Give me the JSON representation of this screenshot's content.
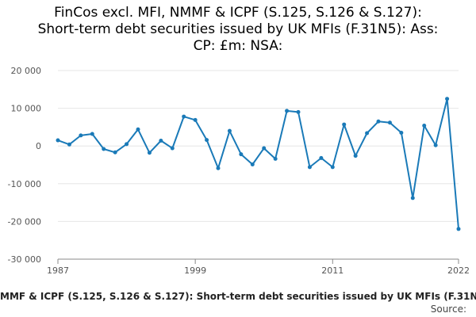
{
  "title_lines": [
    "FinCos excl. MFI, NMMF & ICPF (S.125, S.126 & S.127):",
    "Short-term debt securities issued by UK MFIs (F.31N5): Ass:",
    "CP: £m: NSA:"
  ],
  "footer": {
    "series_label": "MMF & ICPF (S.125, S.126 & S.127): Short-term debt securities issued by UK MFIs (F.31N",
    "source_label": "Source:"
  },
  "colors": {
    "line": "#1a7ab8",
    "grid": "#e6e6e6",
    "axis": "#888888",
    "tick_text": "#555555"
  },
  "chart_data": {
    "type": "line",
    "title": "FinCos excl. MFI, NMMF & ICPF (S.125, S.126 & S.127): Short-term debt securities issued by UK MFIs (F.31N5): Ass: CP: £m: NSA:",
    "xlabel": "",
    "ylabel": "",
    "xlim": [
      1987,
      2022
    ],
    "ylim": [
      -30000,
      20000
    ],
    "y_ticks": [
      20000,
      10000,
      0,
      -10000,
      -20000,
      -30000
    ],
    "y_tick_labels": [
      "20 000",
      "10 000",
      "0",
      "-10 000",
      "-20 000",
      "-30 000"
    ],
    "x_ticks": [
      1987,
      1999,
      2011,
      2022
    ],
    "x_tick_labels": [
      "1987",
      "1999",
      "2011",
      "2022"
    ],
    "grid": true,
    "series": [
      {
        "x": [
          1987,
          1988,
          1989,
          1990,
          1991,
          1992,
          1993,
          1994,
          1995,
          1996,
          1997,
          1998,
          1999,
          2000,
          2001,
          2002,
          2003,
          2004,
          2005,
          2006,
          2007,
          2008,
          2009,
          2010,
          2011,
          2012,
          2013,
          2014,
          2015,
          2016,
          2017,
          2018,
          2019,
          2020,
          2021,
          2022
        ],
        "values": [
          1500,
          400,
          2800,
          3200,
          -800,
          -1700,
          500,
          4400,
          -1800,
          1400,
          -600,
          7800,
          6900,
          1600,
          -5900,
          4000,
          -2200,
          -4900,
          -600,
          -3400,
          9300,
          9000,
          -5600,
          -3200,
          -5600,
          5700,
          -2600,
          3400,
          6500,
          6200,
          3500,
          -13800,
          5400,
          200,
          12500,
          -22000
        ]
      }
    ]
  }
}
